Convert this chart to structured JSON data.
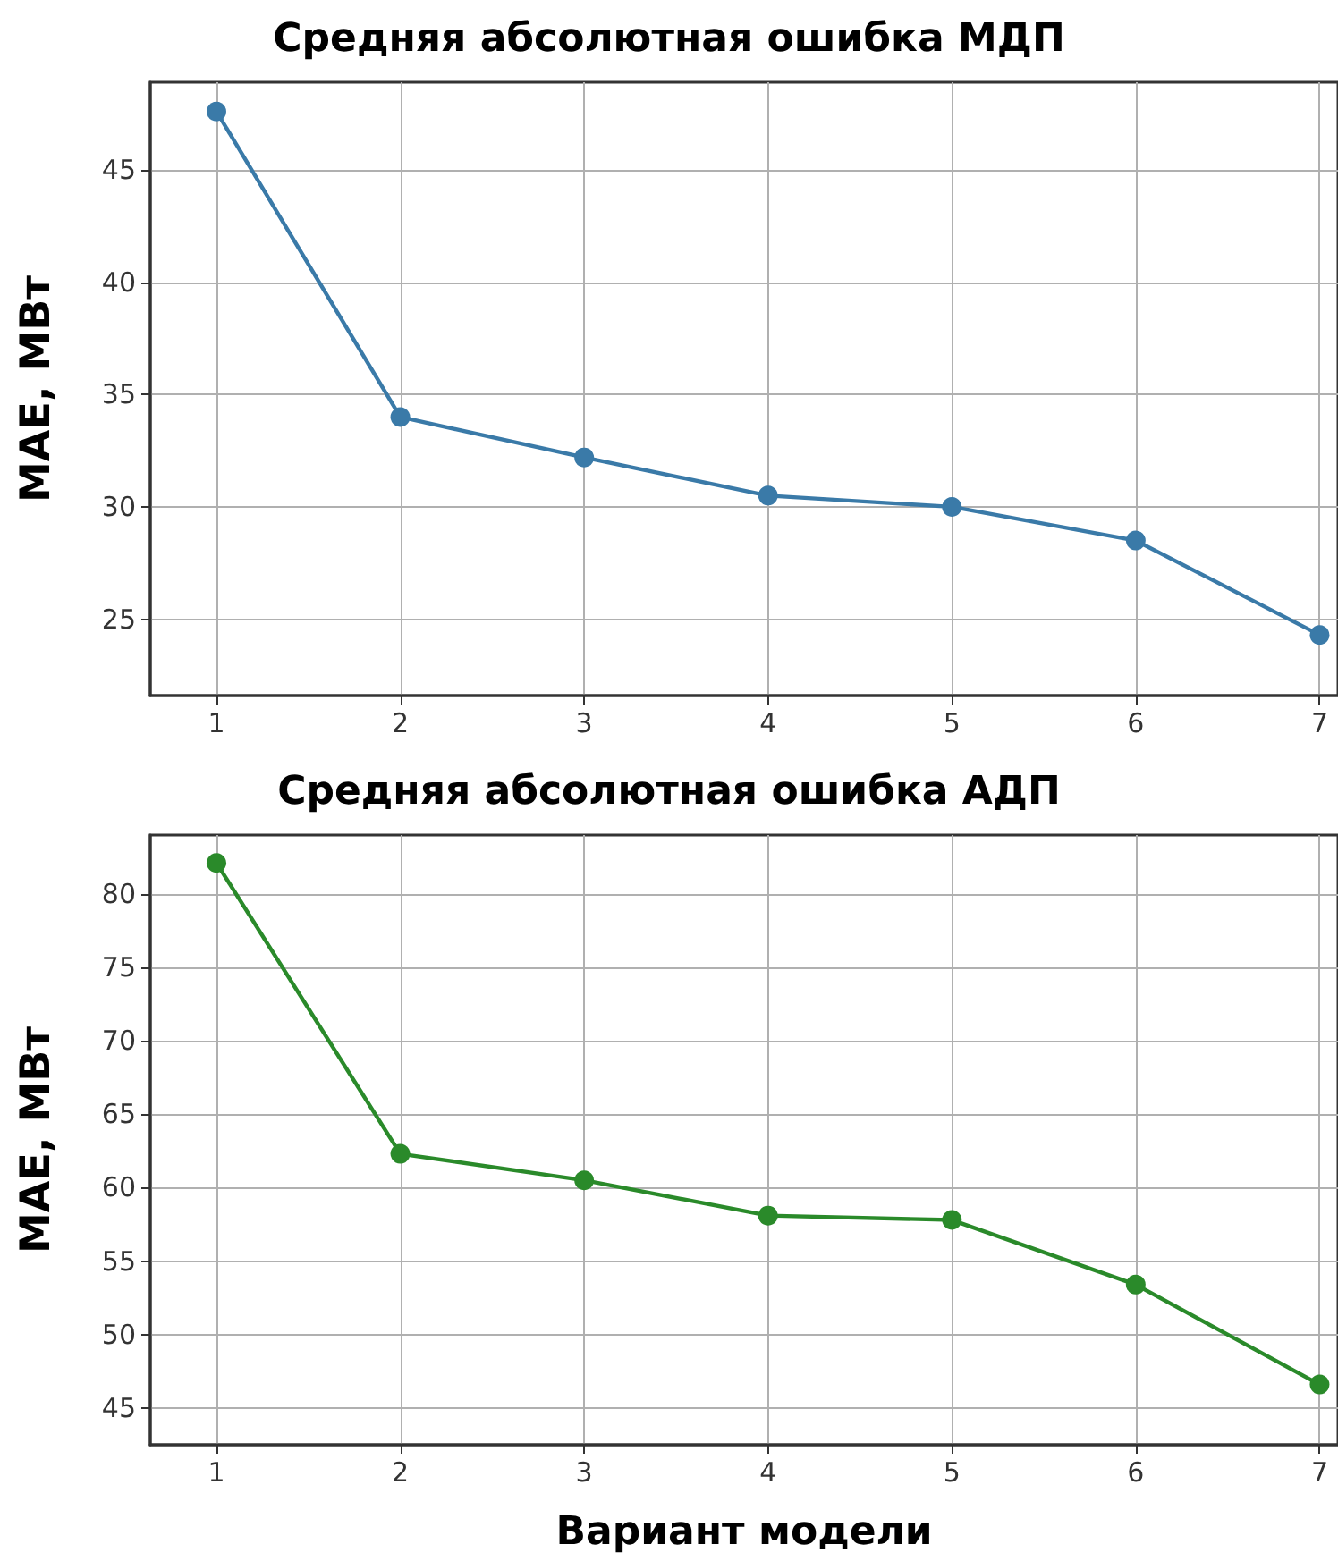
{
  "chart_data": [
    {
      "type": "line",
      "title": "Средняя абсолютная ошибка МДП",
      "ylabel": "MAE, МВт",
      "x": [
        1,
        2,
        3,
        4,
        5,
        6,
        7
      ],
      "series": [
        {
          "color": "#3a7aa8",
          "values": [
            47.6,
            34.0,
            32.2,
            30.5,
            30.0,
            28.5,
            24.3
          ]
        }
      ],
      "xlim": [
        0.64,
        7.1
      ],
      "xticks": [
        1,
        2,
        3,
        4,
        5,
        6,
        7
      ],
      "ylim": [
        21.6,
        48.9
      ],
      "yticks": [
        25,
        30,
        35,
        40,
        45
      ],
      "grid": true,
      "marker": "circle",
      "line_style": "solid"
    },
    {
      "type": "line",
      "title": "Средняя абсолютная ошибка АДП",
      "ylabel": "MAE, МВт",
      "xlabel": "Вариант модели",
      "x": [
        1,
        2,
        3,
        4,
        5,
        6,
        7
      ],
      "series": [
        {
          "color": "#2a8a2a",
          "values": [
            82.1,
            62.3,
            60.5,
            58.1,
            57.8,
            53.4,
            46.6
          ]
        }
      ],
      "xlim": [
        0.64,
        7.1
      ],
      "xticks": [
        1,
        2,
        3,
        4,
        5,
        6,
        7
      ],
      "ylim": [
        42.5,
        84.0
      ],
      "yticks": [
        45,
        50,
        55,
        60,
        65,
        70,
        75,
        80
      ],
      "grid": true,
      "marker": "circle",
      "line_style": "solid"
    }
  ]
}
